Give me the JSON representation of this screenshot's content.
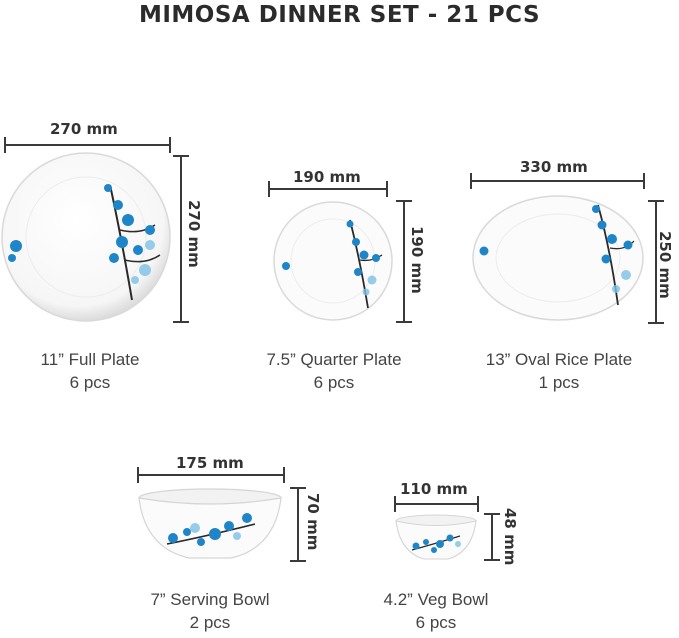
{
  "title": "MIMOSA DINNER SET - 21 PCS",
  "items": [
    {
      "name": "11” Full Plate",
      "qty": "6 pcs",
      "width": "270 mm",
      "height": "270 mm"
    },
    {
      "name": "7.5” Quarter Plate",
      "qty": "6 pcs",
      "width": "190 mm",
      "height": "190 mm"
    },
    {
      "name": "13” Oval Rice Plate",
      "qty": "1 pcs",
      "width": "330 mm",
      "height": "250 mm"
    },
    {
      "name": "7” Serving Bowl",
      "qty": "2 pcs",
      "width": "175 mm",
      "height": "70 mm"
    },
    {
      "name": "4.2” Veg Bowl",
      "qty": "6 pcs",
      "width": "110 mm",
      "height": "48 mm"
    }
  ],
  "colors": {
    "flower": "#1e86c8",
    "flower_light": "#7cc1e6",
    "branch": "#2a2a2a",
    "dim_line": "#3a3a3a"
  }
}
